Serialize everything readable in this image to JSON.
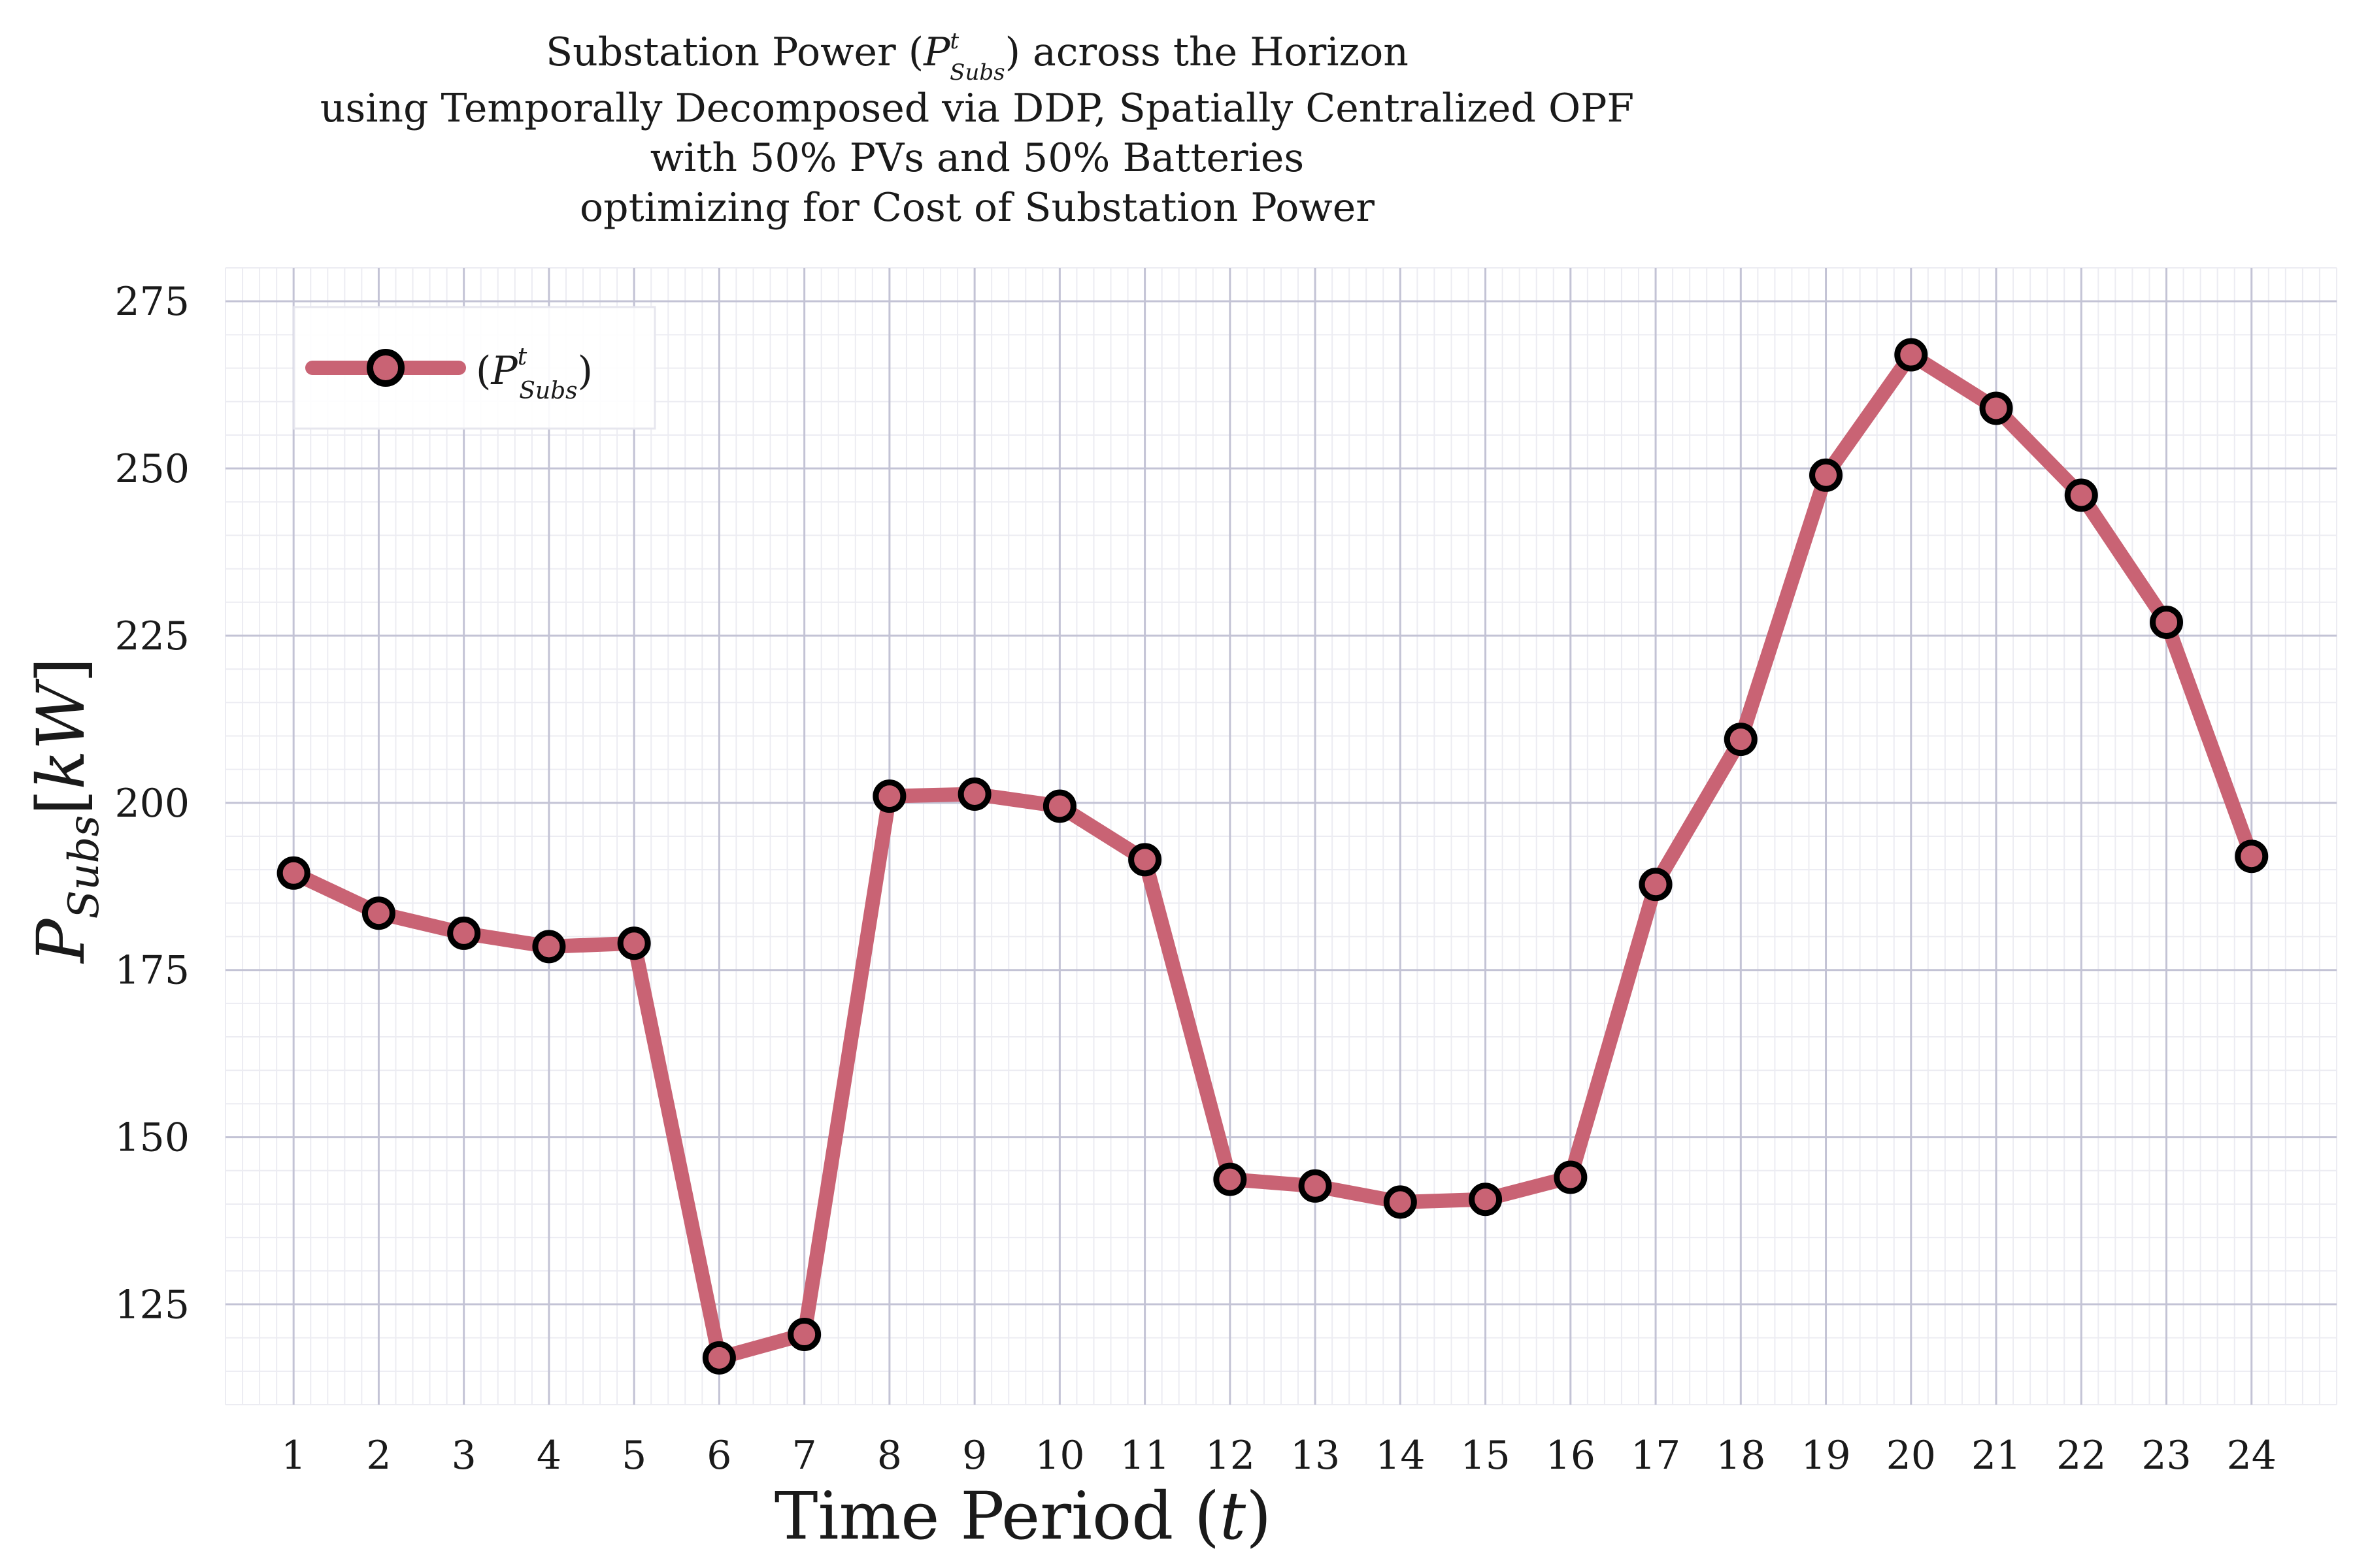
{
  "chart_data": {
    "type": "line",
    "title_lines": [
      "Substation Power (",
      "using Temporally Decomposed via DDP, Spatially Centralized OPF",
      "with 50% PVs and 50% Batteries",
      "optimizing for Cost of Substation Power"
    ],
    "title_first_line_suffix": ") across the Horizon",
    "xlabel": "Time Period",
    "xlabel_var": "t",
    "ylabel_symbol": "P",
    "ylabel_sub": "Subs",
    "ylabel_unit": "kW",
    "x": [
      1,
      2,
      3,
      4,
      5,
      6,
      7,
      8,
      9,
      10,
      11,
      12,
      13,
      14,
      15,
      16,
      17,
      18,
      19,
      20,
      21,
      22,
      23,
      24
    ],
    "xlim": [
      0.2,
      25.0
    ],
    "ylim": [
      110,
      280
    ],
    "yticks": [
      125,
      150,
      175,
      200,
      225,
      250,
      275
    ],
    "grid": true,
    "legend_position": "top-left",
    "series": [
      {
        "name": "P",
        "name_sub": "Subs",
        "name_sup": "t",
        "color": "#c96374",
        "marker_edge": "#000000",
        "values": [
          189.5,
          183.5,
          180.5,
          178.5,
          179.0,
          117.0,
          120.5,
          201.0,
          201.3,
          199.5,
          191.5,
          143.7,
          142.7,
          140.3,
          140.7,
          144.0,
          187.8,
          209.5,
          249.0,
          267.0,
          259.0,
          246.0,
          227.0,
          192.0
        ]
      }
    ]
  }
}
